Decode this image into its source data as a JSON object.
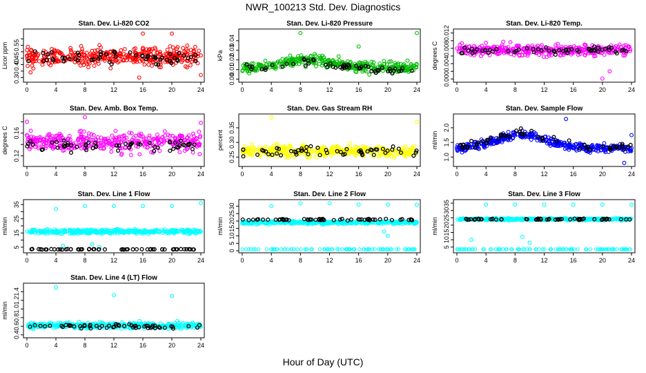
{
  "figure": {
    "title": "NWR_100213  Std. Dev. Diagnostics",
    "xlabel": "Hour of Day (UTC)"
  },
  "chart_data": [
    {
      "type": "scatter",
      "title": "Stan. Dev. Li-820 CO2",
      "ylabel": "Licor ppm",
      "color": "#ff0000",
      "xlim": [
        0,
        24
      ],
      "xticks": [
        0,
        4,
        8,
        12,
        16,
        20,
        24
      ],
      "ylim": [
        0.28,
        0.66
      ],
      "yticks": [
        0.3,
        0.35,
        0.4,
        0.45,
        0.5,
        0.55,
        0.6
      ],
      "ytick_labels": [
        "0.30",
        "",
        "0.40",
        "0.45",
        "",
        "0.55",
        ""
      ],
      "series": {
        "base": 0.46,
        "spread": 0.07,
        "trend": 0,
        "bump": 0,
        "outliers": [
          [
            0.5,
            0.34
          ],
          [
            16,
            0.64
          ],
          [
            20,
            0.64
          ],
          [
            24,
            0.32
          ],
          [
            15.5,
            0.3
          ]
        ],
        "black_base": 0.46,
        "black_spread": 0.05
      }
    },
    {
      "type": "scatter",
      "title": "Stan. Dev. Li-820 Pressure",
      "ylabel": "kPa",
      "color": "#00bb00",
      "xlim": [
        0,
        24
      ],
      "xticks": [
        0,
        4,
        8,
        12,
        16,
        20,
        24
      ],
      "ylim": [
        -0.001,
        0.05
      ],
      "yticks": [
        0.0,
        0.01,
        0.02,
        0.03,
        0.04
      ],
      "ytick_labels": [
        "0.00",
        "0.01",
        "0.02",
        "0.03",
        "0.04"
      ],
      "series": {
        "base": 0.012,
        "spread": 0.006,
        "trend": 0,
        "bump": 0.008,
        "outliers": [
          [
            8,
            0.048
          ],
          [
            24,
            0.048
          ],
          [
            16,
            0.034
          ]
        ],
        "black_base": 0.01,
        "black_spread": 0.004
      }
    },
    {
      "type": "scatter",
      "title": "Stan. Dev. Li-820 Temp.",
      "ylabel": "degrees C",
      "color": "#ff00ff",
      "xlim": [
        0,
        24
      ],
      "xticks": [
        0,
        4,
        8,
        12,
        16,
        20,
        24
      ],
      "ylim": [
        -0.0003,
        0.0125
      ],
      "yticks": [
        0.0,
        0.002,
        0.004,
        0.006,
        0.008,
        0.01,
        0.012
      ],
      "ytick_labels": [
        "0.000",
        "",
        "0.004",
        "",
        "0.008",
        "",
        "0.012"
      ],
      "series": {
        "base": 0.0075,
        "spread": 0.0015,
        "trend": 0,
        "bump": 0,
        "outliers": [
          [
            20,
            0.0001
          ],
          [
            21,
            0.002
          ]
        ],
        "black_base": 0.0075,
        "black_spread": 0.001
      }
    },
    {
      "type": "scatter",
      "title": "Stan. Dev. Amb. Box Temp.",
      "ylabel": "degrees C",
      "color": "#ff00ff",
      "xlim": [
        0,
        24
      ],
      "xticks": [
        0,
        4,
        8,
        12,
        16,
        20,
        24
      ],
      "ylim": [
        0.105,
        0.19
      ],
      "yticks": [
        0.12,
        0.14,
        0.16,
        0.18
      ],
      "ytick_labels": [
        "0.12",
        "",
        "0.16",
        ""
      ],
      "series": {
        "base": 0.145,
        "spread": 0.018,
        "trend": 0,
        "bump": 0,
        "outliers": [
          [
            8,
            0.188
          ],
          [
            0,
            0.18
          ],
          [
            24,
            0.178
          ]
        ],
        "black_base": 0.138,
        "black_spread": 0.01
      }
    },
    {
      "type": "scatter",
      "title": "Stan. Dev. Gas Stream RH",
      "ylabel": "percent",
      "color": "#ffff00",
      "xlim": [
        0,
        24
      ],
      "xticks": [
        0,
        4,
        8,
        12,
        16,
        20,
        24
      ],
      "ylim": [
        0.225,
        0.39
      ],
      "yticks": [
        0.25,
        0.3,
        0.35
      ],
      "ytick_labels": [
        "0.25",
        "0.30",
        "0.35"
      ],
      "series": {
        "base": 0.27,
        "spread": 0.02,
        "trend": 0,
        "bump": 0,
        "outliers": [
          [
            4,
            0.385
          ],
          [
            24,
            0.37
          ]
        ],
        "black_base": 0.27,
        "black_spread": 0.018
      }
    },
    {
      "type": "scatter",
      "title": "Stan. Dev. Sample Flow",
      "ylabel": "ml/min",
      "color": "#0000ff",
      "xlim": [
        0,
        24
      ],
      "xticks": [
        0,
        4,
        8,
        12,
        16,
        20,
        24
      ],
      "ylim": [
        0.75,
        2.4
      ],
      "yticks": [
        1.0,
        1.5,
        2.0
      ],
      "ytick_labels": [
        "1.0",
        "1.5",
        "2.0"
      ],
      "series": {
        "base": 1.3,
        "spread": 0.15,
        "trend": 0,
        "bump": 0.45,
        "outliers": [
          [
            15,
            2.3
          ],
          [
            23,
            0.8
          ],
          [
            24,
            1.75
          ]
        ],
        "black_base": 1.35,
        "black_spread": 0.15
      }
    },
    {
      "type": "scatter",
      "title": "Stan. Dev. Line 1 Flow",
      "ylabel": "ml/min",
      "color": "#00ffff",
      "xlim": [
        0,
        24
      ],
      "xticks": [
        0,
        4,
        8,
        12,
        16,
        20,
        24
      ],
      "ylim": [
        2.5,
        37
      ],
      "yticks": [
        5,
        10,
        15,
        20,
        25,
        30,
        35
      ],
      "ytick_labels": [
        "5",
        "",
        "15",
        "",
        "25",
        "",
        "35"
      ],
      "series": {
        "base": 16,
        "spread": 1.5,
        "trend": 0,
        "bump": 0,
        "outliers": [
          [
            4,
            32
          ],
          [
            8,
            34
          ],
          [
            12,
            34
          ],
          [
            16,
            34
          ],
          [
            20,
            34
          ],
          [
            24,
            36
          ],
          [
            9,
            7
          ],
          [
            10,
            5
          ],
          [
            5,
            6
          ]
        ],
        "black_base": 3.5,
        "black_spread": 0.2
      }
    },
    {
      "type": "scatter",
      "title": "Stan. Dev. Line 2 Flow",
      "ylabel": "ml/min",
      "color": "#00ffff",
      "xlim": [
        0,
        24
      ],
      "xticks": [
        0,
        4,
        8,
        12,
        16,
        20,
        24
      ],
      "ylim": [
        0,
        33
      ],
      "yticks": [
        0,
        5,
        10,
        15,
        20,
        25,
        30
      ],
      "ytick_labels": [
        "0",
        "5",
        "10",
        "15",
        "20",
        "25",
        "30"
      ],
      "series": {
        "base": 19,
        "spread": 1,
        "trend": 0,
        "bump": 0,
        "outliers": [
          [
            4,
            30
          ],
          [
            8,
            32
          ],
          [
            12,
            32
          ],
          [
            16,
            31
          ],
          [
            20,
            31
          ],
          [
            24,
            31
          ],
          [
            20,
            10
          ],
          [
            19.5,
            13
          ]
        ],
        "black_base": 21,
        "black_spread": 0.6
      }
    },
    {
      "type": "scatter",
      "title": "Stan. Dev. Line 3 Flow",
      "ylabel": "ml/min",
      "color": "#00ffff",
      "xlim": [
        0,
        24
      ],
      "xticks": [
        0,
        4,
        8,
        12,
        16,
        20,
        24
      ],
      "ylim": [
        2.5,
        36
      ],
      "yticks": [
        5,
        10,
        15,
        20,
        25,
        30,
        35
      ],
      "ytick_labels": [
        "5",
        "10",
        "15",
        "20",
        "25",
        "30",
        "35"
      ],
      "series": {
        "base": 24,
        "spread": 0.7,
        "trend": 0,
        "bump": 0,
        "outliers": [
          [
            4,
            34
          ],
          [
            8,
            34
          ],
          [
            12,
            34
          ],
          [
            16,
            34
          ],
          [
            20,
            34
          ],
          [
            24,
            34
          ],
          [
            9,
            12
          ],
          [
            10,
            8
          ],
          [
            2,
            10
          ]
        ],
        "black_base": 24,
        "black_spread": 0.5
      }
    },
    {
      "type": "scatter",
      "title": "Stan. Dev. Line 4 (LT) Flow",
      "ylabel": "ml/min",
      "color": "#00ffff",
      "xlim": [
        0,
        24
      ],
      "xticks": [
        0,
        4,
        8,
        12,
        16,
        20,
        24
      ],
      "ylim": [
        0.38,
        1.55
      ],
      "yticks": [
        0.4,
        0.6,
        0.8,
        1.0,
        1.2,
        1.4
      ],
      "ytick_labels": [
        "0.4",
        "0.6",
        "0.8",
        "1.0",
        "1.2",
        "1.4"
      ],
      "series": {
        "base": 0.62,
        "spread": 0.07,
        "trend": 0,
        "bump": 0,
        "outliers": [
          [
            4,
            1.5
          ],
          [
            12,
            1.32
          ],
          [
            20,
            1.3
          ]
        ],
        "black_base": 0.6,
        "black_spread": 0.06
      }
    }
  ]
}
